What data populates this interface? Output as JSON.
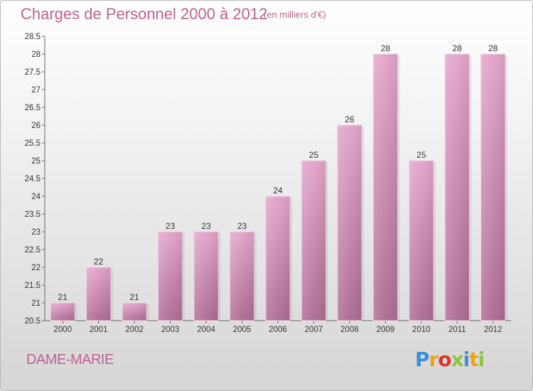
{
  "chart_data": {
    "type": "bar",
    "title": "Charges de Personnel 2000 à 2012",
    "subtitle": "(en milliers d'€)",
    "xlabel": "",
    "ylabel": "",
    "categories": [
      "2000",
      "2001",
      "2002",
      "2003",
      "2004",
      "2005",
      "2006",
      "2007",
      "2008",
      "2009",
      "2010",
      "2011",
      "2012"
    ],
    "values": [
      21,
      22,
      21,
      23,
      23,
      23,
      24,
      25,
      26,
      28,
      25,
      28,
      28
    ],
    "ylim": [
      20.5,
      28.5
    ],
    "yticks": [
      "20.5",
      "21",
      "21.5",
      "22",
      "22.5",
      "23",
      "23.5",
      "24",
      "24.5",
      "25",
      "25.5",
      "26",
      "26.5",
      "27",
      "27.5",
      "28",
      "28.5"
    ],
    "grid": false,
    "legend": "none",
    "colors": {
      "bar_top": "#e2a4ca",
      "bar_bottom": "#ad6a91",
      "text": "#c0608e"
    }
  },
  "footer": {
    "town": "DAME-MARIE",
    "logo": "Proxiti"
  }
}
